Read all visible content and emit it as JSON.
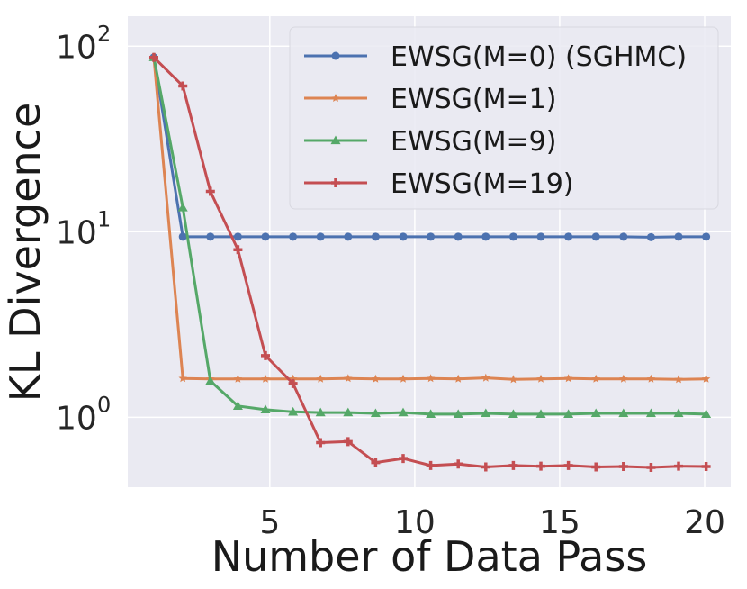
{
  "chart_data": {
    "type": "line",
    "xlabel": "Number of Data Pass",
    "ylabel": "KL Divergence",
    "yscale": "log",
    "xlim": [
      0.1,
      20.9
    ],
    "ylim": [
      0.42,
      145
    ],
    "x_ticks": [
      5,
      10,
      15,
      20
    ],
    "x_tick_labels": [
      "5",
      "10",
      "15",
      "20"
    ],
    "y_ticks": [
      1,
      10,
      100
    ],
    "y_tick_labels": [
      {
        "base": "10",
        "exp": "0"
      },
      {
        "base": "10",
        "exp": "1"
      },
      {
        "base": "10",
        "exp": "2"
      }
    ],
    "grid": true,
    "legend_position": "upper right",
    "background": "#eaeaf2",
    "series": [
      {
        "name": "EWSG(M=0) (SGHMC)",
        "color": "#4c72b0",
        "marker": "circle",
        "x": [
          1,
          2,
          2.95,
          3.9,
          4.85,
          5.8,
          6.75,
          7.7,
          8.65,
          9.6,
          10.55,
          11.5,
          12.45,
          13.4,
          14.35,
          15.3,
          16.25,
          17.2,
          18.15,
          19.1,
          20.05
        ],
        "y": [
          87,
          9.4,
          9.4,
          9.4,
          9.4,
          9.4,
          9.4,
          9.4,
          9.4,
          9.4,
          9.4,
          9.4,
          9.4,
          9.4,
          9.4,
          9.4,
          9.4,
          9.4,
          9.35,
          9.4,
          9.4
        ]
      },
      {
        "name": "EWSG(M=1)",
        "color": "#dd8452",
        "marker": "star",
        "x": [
          1,
          2,
          2.95,
          3.9,
          4.85,
          5.8,
          6.75,
          7.7,
          8.65,
          9.6,
          10.55,
          11.5,
          12.45,
          13.4,
          14.35,
          15.3,
          16.25,
          17.2,
          18.15,
          19.1,
          20.05
        ],
        "y": [
          87,
          1.62,
          1.61,
          1.61,
          1.61,
          1.61,
          1.61,
          1.62,
          1.61,
          1.61,
          1.62,
          1.61,
          1.63,
          1.6,
          1.61,
          1.62,
          1.61,
          1.61,
          1.61,
          1.6,
          1.61
        ]
      },
      {
        "name": "EWSG(M=9)",
        "color": "#55a868",
        "marker": "triangle",
        "x": [
          1,
          2,
          2.95,
          3.9,
          4.85,
          5.8,
          6.75,
          7.7,
          8.65,
          9.6,
          10.55,
          11.5,
          12.45,
          13.4,
          14.35,
          15.3,
          16.25,
          17.2,
          18.15,
          19.1,
          20.05
        ],
        "y": [
          87,
          13.5,
          1.57,
          1.15,
          1.1,
          1.07,
          1.06,
          1.06,
          1.05,
          1.06,
          1.04,
          1.04,
          1.05,
          1.04,
          1.04,
          1.04,
          1.05,
          1.05,
          1.05,
          1.05,
          1.04
        ]
      },
      {
        "name": "EWSG(M=19)",
        "color": "#c44e52",
        "marker": "plus",
        "x": [
          1,
          2,
          2.95,
          3.9,
          4.85,
          5.8,
          6.75,
          7.7,
          8.65,
          9.6,
          10.55,
          11.5,
          12.45,
          13.4,
          14.35,
          15.3,
          16.25,
          17.2,
          18.15,
          19.1,
          20.05
        ],
        "y": [
          87,
          61,
          16.5,
          8.0,
          2.15,
          1.52,
          0.73,
          0.74,
          0.57,
          0.6,
          0.55,
          0.56,
          0.54,
          0.55,
          0.545,
          0.55,
          0.54,
          0.543,
          0.537,
          0.545,
          0.543
        ]
      }
    ]
  }
}
